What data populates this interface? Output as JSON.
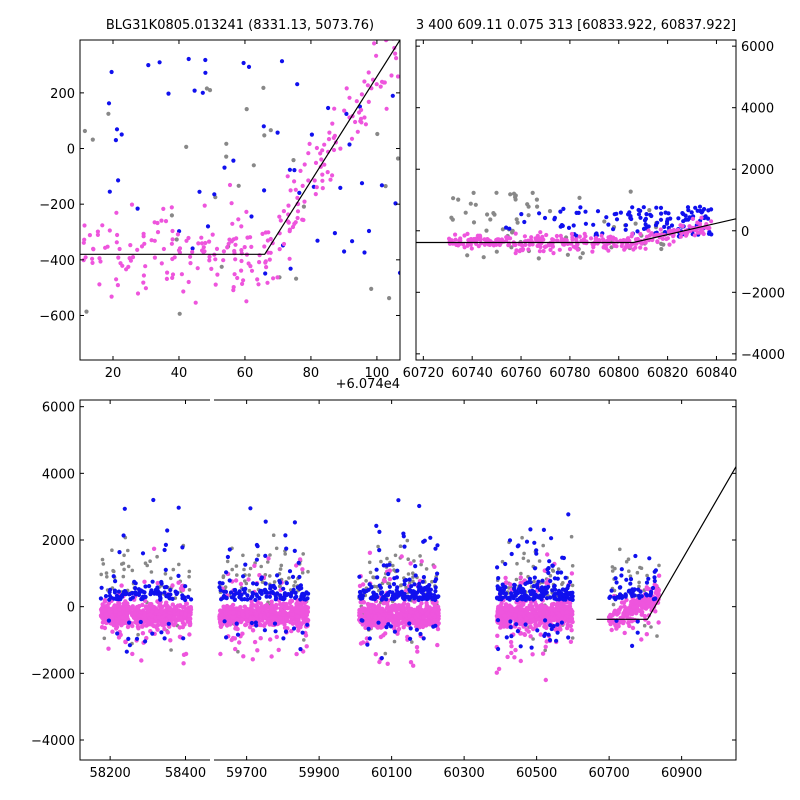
{
  "chart_data": [
    {
      "id": "zoom",
      "type": "scatter",
      "title": "BLG31K0805.013241 (8331.13, 5073.76)",
      "offset_label": "+6.074e4",
      "xlim": [
        10,
        107
      ],
      "ylim": [
        -760,
        390
      ],
      "xticks": [
        20,
        40,
        60,
        80,
        100
      ],
      "yticks": [
        -600,
        -400,
        -200,
        0,
        200
      ],
      "y_axis_side": "left",
      "model": {
        "x": [
          10,
          66,
          107
        ],
        "y": [
          -380,
          -380,
          390
        ]
      },
      "series": [
        {
          "name": "gray",
          "color": "#888888",
          "gen": {
            "n": 30,
            "x": [
              10,
              107
            ],
            "bands": [
              [
                -600,
                250
              ]
            ]
          }
        },
        {
          "name": "blue",
          "color": "#1010ee",
          "gen": {
            "n": 55,
            "x": [
              10,
              107
            ],
            "bands": [
              [
                -450,
                380
              ]
            ]
          }
        },
        {
          "name": "pink",
          "color": "#ee55dd",
          "gen": {
            "n": 260,
            "x": [
              10,
              107
            ],
            "bands": [
              [
                -720,
                100
              ]
            ],
            "trend": true
          }
        }
      ]
    },
    {
      "id": "season",
      "type": "scatter",
      "title": "3 400 609.11 0.075 313 [60833.922, 60837.922]",
      "xlim": [
        60717,
        60848
      ],
      "ylim": [
        -4200,
        6200
      ],
      "xticks": [
        60720,
        60740,
        60760,
        60780,
        60800,
        60820,
        60840
      ],
      "yticks": [
        -4000,
        -2000,
        0,
        2000,
        4000,
        6000
      ],
      "y_axis_side": "right",
      "model": {
        "x": [
          60717,
          60806,
          60848
        ],
        "y": [
          -380,
          -380,
          390
        ]
      },
      "series": [
        {
          "name": "gray",
          "color": "#888888",
          "gen": {
            "n": 70,
            "x": [
              60730,
              60838
            ],
            "bands": [
              [
                -900,
                1300
              ]
            ]
          }
        },
        {
          "name": "blue",
          "color": "#1010ee",
          "gen": {
            "n": 130,
            "x": [
              60740,
              60838
            ],
            "bands": [
              [
                -200,
                800
              ]
            ],
            "xbias": 0.6
          }
        },
        {
          "name": "pink",
          "color": "#ee55dd",
          "gen": {
            "n": 330,
            "x": [
              60730,
              60838
            ],
            "bands": [
              [
                -700,
                100
              ]
            ],
            "trend": true
          }
        }
      ]
    },
    {
      "id": "full",
      "type": "scatter",
      "xlim": [
        58120,
        61050
      ],
      "ylim": [
        -4600,
        6200
      ],
      "xticks": [
        58200,
        58400,
        59700,
        59900,
        60100,
        60300,
        60500,
        60700,
        60900
      ],
      "yticks": [
        -4000,
        -2000,
        0,
        2000,
        4000,
        6000
      ],
      "y_axis_side": "left",
      "broken_axis": {
        "gap": [
          58465,
          59610
        ],
        "left_span": [
          58120,
          58465
        ],
        "right_span": [
          59610,
          61050
        ]
      },
      "model": {
        "x": [
          60665,
          60806,
          61050
        ],
        "y": [
          -380,
          -380,
          4200
        ]
      },
      "seasons": [
        {
          "x": [
            58175,
            58415
          ],
          "n_pink": 600,
          "n_blue": 120,
          "n_gray": 60
        },
        {
          "x": [
            59625,
            59870
          ],
          "n_pink": 620,
          "n_blue": 150,
          "n_gray": 80
        },
        {
          "x": [
            60010,
            60230
          ],
          "n_pink": 620,
          "n_blue": 200,
          "n_gray": 80
        },
        {
          "x": [
            60390,
            60600
          ],
          "n_pink": 600,
          "n_blue": 220,
          "n_gray": 70
        },
        {
          "x": [
            60700,
            60838
          ],
          "n_pink": 200,
          "n_blue": 60,
          "n_gray": 30
        }
      ],
      "colors": {
        "gray": "#888888",
        "blue": "#1010ee",
        "pink": "#ee55dd"
      }
    }
  ]
}
